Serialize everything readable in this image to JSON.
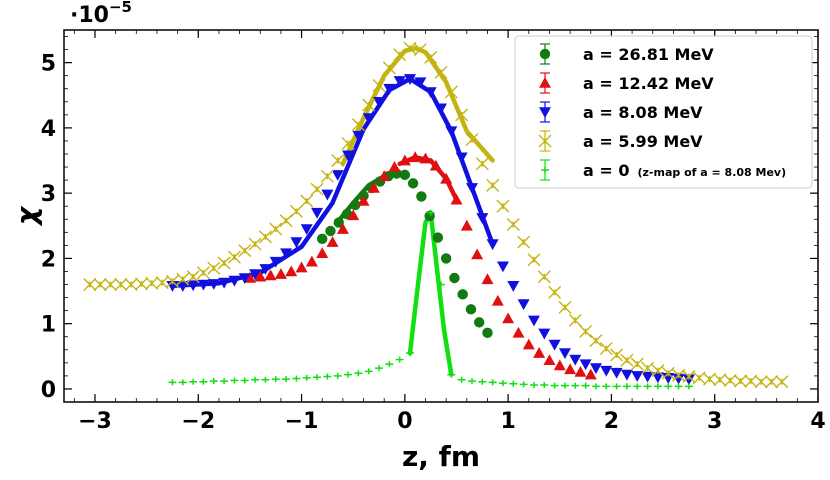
{
  "chart_data": {
    "type": "scatter",
    "xlabel": "z, fm",
    "ylabel": "χ",
    "scale_label": "·10−5",
    "scale_base": "·10",
    "scale_exp": "−5",
    "xlim": [
      -3.3,
      4.0
    ],
    "ylim": [
      -0.2,
      5.5
    ],
    "x_ticks": [
      -3,
      -2,
      -1,
      0,
      1,
      2,
      3,
      4
    ],
    "x_tick_labels": [
      "−3",
      "−2",
      "−1",
      "0",
      "1",
      "2",
      "3",
      "4"
    ],
    "y_ticks": [
      0,
      1,
      2,
      3,
      4,
      5
    ],
    "y_tick_labels": [
      "0",
      "1",
      "2",
      "3",
      "4",
      "5"
    ],
    "legend_position": "top-right",
    "series": [
      {
        "name": "a = 26.81 MeV",
        "label_main": "a = 26.81 MeV",
        "marker": "circle",
        "color": "#117a11",
        "x": [
          -0.8,
          -0.72,
          -0.64,
          -0.56,
          -0.48,
          -0.4,
          -0.32,
          -0.24,
          -0.16,
          -0.08,
          0.0,
          0.08,
          0.16,
          0.24,
          0.32,
          0.4,
          0.48,
          0.56,
          0.64,
          0.72,
          0.8
        ],
        "values": [
          2.3,
          2.42,
          2.55,
          2.68,
          2.82,
          2.96,
          3.08,
          3.18,
          3.26,
          3.3,
          3.28,
          3.15,
          2.95,
          2.65,
          2.32,
          2.0,
          1.7,
          1.45,
          1.22,
          1.02,
          0.86
        ],
        "fit_x": [
          -0.65,
          -0.5,
          -0.35,
          -0.2,
          -0.05,
          0.0
        ],
        "fit_y": [
          2.56,
          2.85,
          3.12,
          3.26,
          3.3,
          3.28
        ]
      },
      {
        "name": "a = 12.42 MeV",
        "label_main": "a = 12.42 MeV",
        "marker": "triangle-up",
        "color": "#e01010",
        "x": [
          -1.5,
          -1.4,
          -1.3,
          -1.2,
          -1.1,
          -1.0,
          -0.9,
          -0.8,
          -0.7,
          -0.6,
          -0.5,
          -0.4,
          -0.3,
          -0.2,
          -0.1,
          0.0,
          0.1,
          0.2,
          0.3,
          0.4,
          0.5,
          0.6,
          0.7,
          0.8,
          0.9,
          1.0,
          1.1,
          1.2,
          1.3,
          1.4,
          1.5,
          1.6,
          1.7,
          1.8
        ],
        "values": [
          1.7,
          1.72,
          1.74,
          1.76,
          1.8,
          1.86,
          1.95,
          2.08,
          2.25,
          2.45,
          2.66,
          2.88,
          3.08,
          3.26,
          3.4,
          3.5,
          3.55,
          3.53,
          3.42,
          3.22,
          2.9,
          2.5,
          2.06,
          1.68,
          1.35,
          1.08,
          0.86,
          0.68,
          0.55,
          0.44,
          0.36,
          0.3,
          0.26,
          0.22
        ],
        "fit_x": [
          -0.05,
          0.1,
          0.25,
          0.4,
          0.5
        ],
        "fit_y": [
          3.45,
          3.55,
          3.5,
          3.22,
          2.9
        ]
      },
      {
        "name": "a = 8.08 MeV",
        "label_main": "a = 8.08 MeV",
        "marker": "triangle-down",
        "color": "#1010e0",
        "x": [
          -2.25,
          -2.15,
          -2.05,
          -1.95,
          -1.85,
          -1.75,
          -1.65,
          -1.55,
          -1.45,
          -1.35,
          -1.25,
          -1.15,
          -1.05,
          -0.95,
          -0.85,
          -0.75,
          -0.65,
          -0.55,
          -0.45,
          -0.35,
          -0.25,
          -0.15,
          -0.05,
          0.05,
          0.15,
          0.25,
          0.35,
          0.45,
          0.55,
          0.65,
          0.75,
          0.85,
          0.95,
          1.05,
          1.15,
          1.25,
          1.35,
          1.45,
          1.55,
          1.65,
          1.75,
          1.85,
          1.95,
          2.05,
          2.15,
          2.25,
          2.35,
          2.45,
          2.55,
          2.65,
          2.75
        ],
        "values": [
          1.58,
          1.58,
          1.59,
          1.6,
          1.61,
          1.63,
          1.66,
          1.7,
          1.76,
          1.84,
          1.95,
          2.08,
          2.25,
          2.45,
          2.7,
          2.98,
          3.28,
          3.58,
          3.88,
          4.15,
          4.4,
          4.6,
          4.72,
          4.75,
          4.7,
          4.55,
          4.3,
          3.95,
          3.55,
          3.08,
          2.62,
          2.22,
          1.88,
          1.58,
          1.3,
          1.05,
          0.85,
          0.68,
          0.55,
          0.45,
          0.38,
          0.32,
          0.28,
          0.25,
          0.22,
          0.2,
          0.19,
          0.18,
          0.17,
          0.16,
          0.15
        ],
        "fit_x": [
          -2.25,
          -1.8,
          -1.4,
          -1.0,
          -0.7,
          -0.4,
          -0.15,
          0.05,
          0.25,
          0.45,
          0.65,
          0.85
        ],
        "fit_y": [
          1.58,
          1.62,
          1.78,
          2.18,
          2.85,
          3.98,
          4.58,
          4.75,
          4.55,
          3.95,
          3.08,
          2.22
        ]
      },
      {
        "name": "a = 5.99 MeV",
        "label_main": "a = 5.99 MeV",
        "marker": "x",
        "color": "#c4b410",
        "x": [
          -3.05,
          -2.95,
          -2.85,
          -2.75,
          -2.65,
          -2.55,
          -2.45,
          -2.35,
          -2.25,
          -2.15,
          -2.05,
          -1.95,
          -1.85,
          -1.75,
          -1.65,
          -1.55,
          -1.45,
          -1.35,
          -1.25,
          -1.15,
          -1.05,
          -0.95,
          -0.85,
          -0.75,
          -0.65,
          -0.55,
          -0.45,
          -0.35,
          -0.25,
          -0.15,
          -0.05,
          0.05,
          0.15,
          0.25,
          0.35,
          0.45,
          0.55,
          0.65,
          0.75,
          0.85,
          0.95,
          1.05,
          1.15,
          1.25,
          1.35,
          1.45,
          1.55,
          1.65,
          1.75,
          1.85,
          1.95,
          2.05,
          2.15,
          2.25,
          2.35,
          2.45,
          2.55,
          2.65,
          2.75,
          2.85,
          2.95,
          3.05,
          3.15,
          3.25,
          3.35,
          3.45,
          3.55,
          3.65
        ],
        "values": [
          1.6,
          1.6,
          1.6,
          1.6,
          1.6,
          1.61,
          1.62,
          1.63,
          1.65,
          1.68,
          1.72,
          1.78,
          1.85,
          1.93,
          2.02,
          2.12,
          2.22,
          2.33,
          2.45,
          2.58,
          2.72,
          2.88,
          3.06,
          3.26,
          3.5,
          3.76,
          4.05,
          4.35,
          4.65,
          4.92,
          5.12,
          5.22,
          5.2,
          5.08,
          4.85,
          4.55,
          4.2,
          3.82,
          3.45,
          3.12,
          2.8,
          2.52,
          2.25,
          1.98,
          1.72,
          1.48,
          1.25,
          1.05,
          0.88,
          0.74,
          0.62,
          0.52,
          0.44,
          0.38,
          0.32,
          0.28,
          0.24,
          0.21,
          0.19,
          0.17,
          0.15,
          0.14,
          0.13,
          0.12,
          0.12,
          0.11,
          0.11,
          0.11
        ],
        "fit_x": [
          -0.6,
          -0.4,
          -0.2,
          0.0,
          0.1,
          0.2,
          0.4,
          0.6,
          0.85
        ],
        "fit_y": [
          3.45,
          4.15,
          4.8,
          5.18,
          5.22,
          5.16,
          4.7,
          3.95,
          3.5
        ]
      },
      {
        "name": "a = 0",
        "label_main": "a = 0",
        "label_note": "(z-map of a = 8.08 Mev)",
        "marker": "plus",
        "color": "#10e010",
        "x": [
          -2.25,
          -2.15,
          -2.05,
          -1.95,
          -1.85,
          -1.75,
          -1.65,
          -1.55,
          -1.45,
          -1.35,
          -1.25,
          -1.15,
          -1.05,
          -0.95,
          -0.85,
          -0.75,
          -0.65,
          -0.55,
          -0.45,
          -0.35,
          -0.25,
          -0.15,
          -0.05,
          0.05,
          0.25,
          0.35,
          0.45,
          0.55,
          0.65,
          0.75,
          0.85,
          0.95,
          1.05,
          1.15,
          1.25,
          1.35,
          1.45,
          1.55,
          1.65,
          1.75,
          1.85,
          1.95,
          2.05,
          2.15,
          2.25,
          2.35,
          2.45,
          2.55,
          2.65,
          2.75
        ],
        "values": [
          0.1,
          0.1,
          0.11,
          0.11,
          0.12,
          0.12,
          0.13,
          0.13,
          0.14,
          0.14,
          0.15,
          0.15,
          0.16,
          0.17,
          0.18,
          0.19,
          0.2,
          0.22,
          0.24,
          0.27,
          0.32,
          0.38,
          0.45,
          0.55,
          2.7,
          1.6,
          0.22,
          0.14,
          0.12,
          0.11,
          0.1,
          0.09,
          0.08,
          0.07,
          0.06,
          0.06,
          0.05,
          0.05,
          0.05,
          0.05,
          0.04,
          0.04,
          0.04,
          0.04,
          0.04,
          0.04,
          0.04,
          0.04,
          0.04,
          0.04
        ],
        "fit_x": [
          0.05,
          0.12,
          0.2,
          0.25,
          0.3,
          0.38,
          0.45
        ],
        "fit_y": [
          0.55,
          1.5,
          2.55,
          2.7,
          2.0,
          0.9,
          0.22
        ]
      }
    ]
  }
}
